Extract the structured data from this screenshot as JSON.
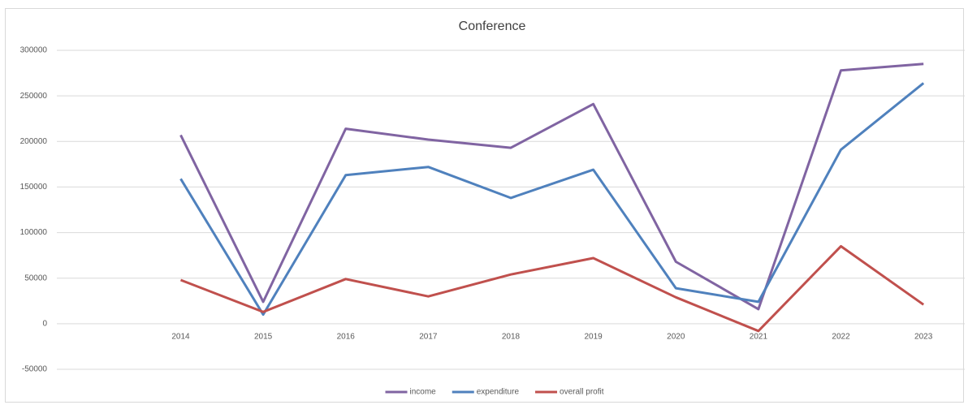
{
  "chart_data": {
    "type": "line",
    "title": "Conference",
    "categories": [
      null,
      "2014",
      "2015",
      "2016",
      "2017",
      "2018",
      "2019",
      "2020",
      "2021",
      "2022",
      "2023"
    ],
    "series": [
      {
        "name": "income",
        "color": "#8064a2",
        "values": [
          null,
          207000,
          24000,
          214000,
          202000,
          193000,
          241000,
          68000,
          16000,
          278000,
          285000
        ]
      },
      {
        "name": "expenditure",
        "color": "#4f81bd",
        "values": [
          null,
          159000,
          10000,
          163000,
          172000,
          138000,
          169000,
          39000,
          24000,
          191000,
          264000
        ]
      },
      {
        "name": "overall profit",
        "color": "#c0504d",
        "values": [
          null,
          48000,
          13000,
          49000,
          30000,
          54000,
          72000,
          29000,
          -8000,
          85000,
          21000
        ]
      }
    ],
    "ylim": [
      -50000,
      300000
    ],
    "yticks": [
      -50000,
      0,
      50000,
      100000,
      150000,
      200000,
      250000,
      300000
    ],
    "grid": true,
    "legend": "bottom"
  }
}
